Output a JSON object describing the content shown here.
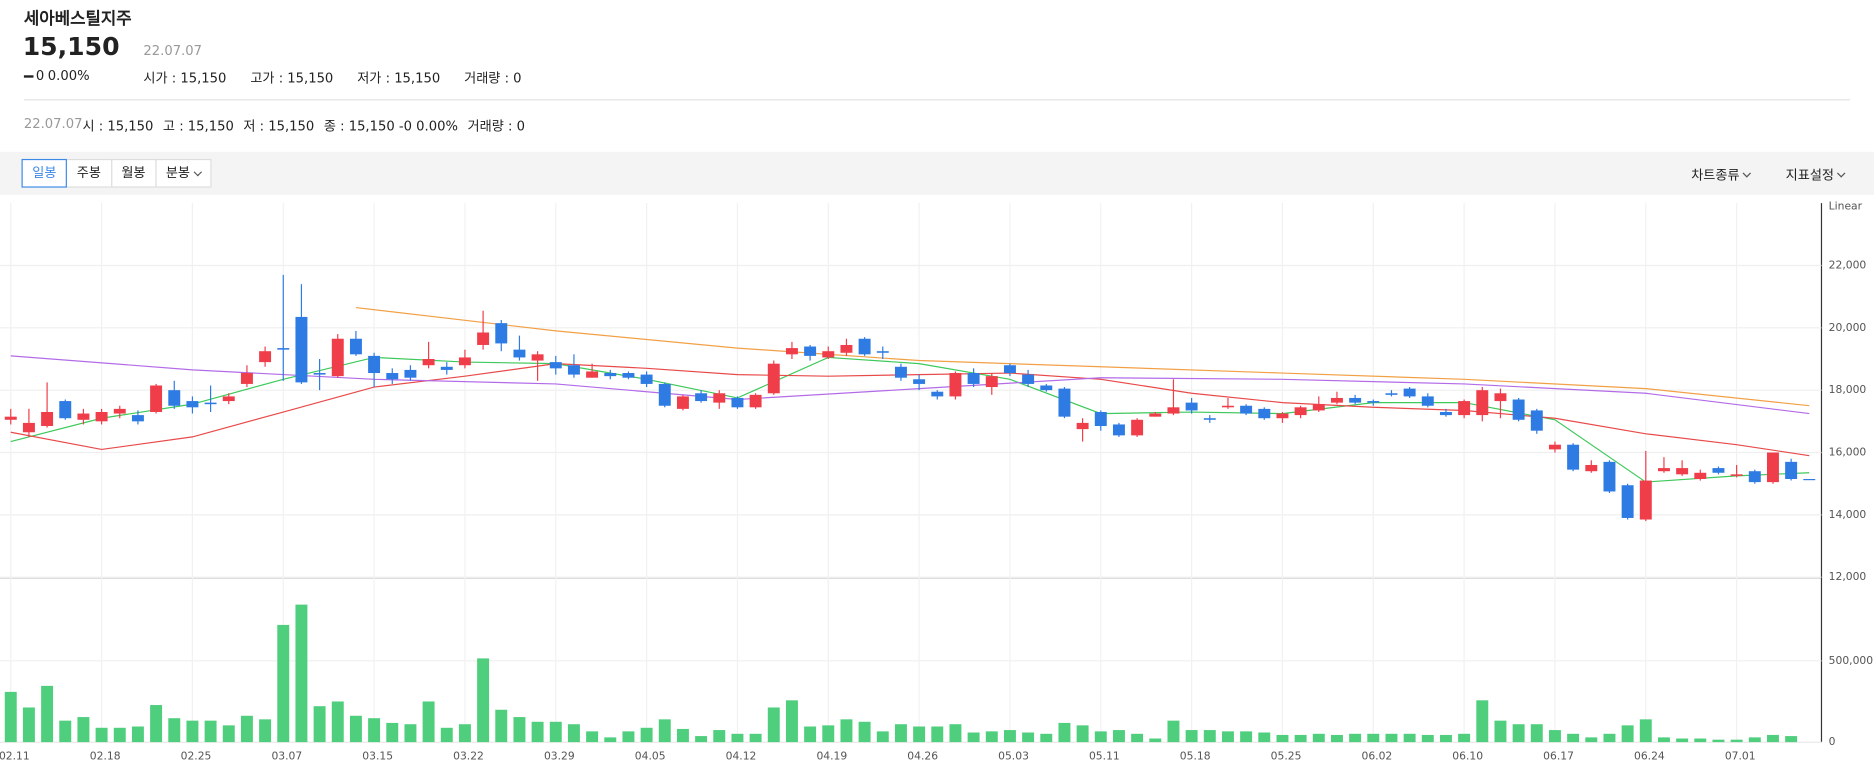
{
  "header": {
    "name": "세아베스틸지주",
    "price": "15,150",
    "date": "22.07.07",
    "change": "0",
    "change_pct": "0.00%",
    "stats": [
      "시가 : 15,150",
      "고가 : 15,150",
      "저가 : 15,150",
      "거래량 : 0"
    ]
  },
  "summary": {
    "date": "22.07.07",
    "items": [
      "시 : 15,150",
      "고 : 15,150",
      "저 : 15,150",
      "종 : 15,150 -0 0.00%",
      "거래량 : 0"
    ]
  },
  "toolbar": {
    "periods": [
      "일봉",
      "주봉",
      "월봉",
      "분봉"
    ],
    "selected": 0,
    "menus": [
      "차트종류",
      "지표설정"
    ]
  },
  "chart_data": {
    "type": "candlestick",
    "scale_label": "Linear",
    "categories": [
      "02.11",
      null,
      null,
      null,
      null,
      "02.18",
      null,
      null,
      null,
      null,
      "02.25",
      null,
      null,
      null,
      null,
      "03.07",
      null,
      null,
      null,
      null,
      "03.15",
      null,
      null,
      null,
      null,
      "03.22",
      null,
      null,
      null,
      null,
      "03.29",
      null,
      null,
      null,
      null,
      "04.05",
      null,
      null,
      null,
      null,
      "04.12",
      null,
      null,
      null,
      null,
      "04.19",
      null,
      null,
      null,
      null,
      "04.26",
      null,
      null,
      null,
      null,
      "05.03",
      null,
      null,
      null,
      null,
      "05.11",
      null,
      null,
      null,
      null,
      "05.18",
      null,
      null,
      null,
      null,
      "05.25",
      null,
      null,
      null,
      null,
      "06.02",
      null,
      null,
      null,
      null,
      "06.10",
      null,
      null,
      null,
      null,
      "06.17",
      null,
      null,
      null,
      null,
      "06.24",
      null,
      null,
      null,
      null,
      "07.01",
      null,
      null,
      null,
      null
    ],
    "open": [
      17050,
      16650,
      16850,
      17650,
      17050,
      17000,
      17250,
      17200,
      17300,
      18000,
      17650,
      17600,
      17650,
      18200,
      18900,
      19350,
      20350,
      18550,
      18450,
      19650,
      19100,
      18550,
      18650,
      18800,
      18750,
      18800,
      19450,
      20150,
      19300,
      18950,
      18900,
      18800,
      18400,
      18550,
      18550,
      18500,
      18200,
      17400,
      17900,
      17600,
      17750,
      17450,
      17900,
      19150,
      19400,
      19050,
      19200,
      19650,
      19250,
      18750,
      18350,
      17950,
      17800,
      18550,
      18100,
      18800,
      18500,
      18150,
      18050,
      16750,
      17300,
      16900,
      16550,
      17150,
      17250,
      17600,
      17100,
      17450,
      17500,
      17400,
      17100,
      17200,
      17350,
      17600,
      17750,
      17650,
      17900,
      18050,
      17800,
      17300,
      17200,
      17200,
      17650,
      17700,
      17350,
      16100,
      16250,
      15400,
      15700,
      14950,
      13850,
      15400,
      15300,
      15150,
      15500,
      15250,
      15400,
      15050,
      15700,
      15150
    ],
    "close": [
      17150,
      16950,
      17300,
      17100,
      17250,
      17300,
      17400,
      17000,
      18150,
      17500,
      17450,
      17550,
      17800,
      18550,
      19250,
      19300,
      18250,
      18500,
      19650,
      19150,
      18550,
      18350,
      18400,
      19000,
      18650,
      19050,
      19850,
      19500,
      19050,
      19150,
      18700,
      18500,
      18600,
      18450,
      18400,
      18200,
      17500,
      17800,
      17650,
      17900,
      17450,
      17850,
      18850,
      19350,
      19100,
      19250,
      19450,
      19150,
      19200,
      18400,
      18200,
      17800,
      18550,
      18200,
      18450,
      18550,
      18200,
      18000,
      17150,
      16950,
      16850,
      16550,
      17050,
      17250,
      17450,
      17350,
      17050,
      17500,
      17250,
      17100,
      17250,
      17450,
      17550,
      17750,
      17600,
      17600,
      17850,
      17800,
      17500,
      17200,
      17650,
      18000,
      17900,
      17050,
      16700,
      16250,
      15450,
      15600,
      14750,
      13900,
      15100,
      15500,
      15500,
      15350,
      15350,
      15300,
      15050,
      16000,
      15150,
      15150
    ],
    "high": [
      17400,
      17400,
      18250,
      17700,
      17400,
      17400,
      17500,
      17350,
      18200,
      18300,
      17800,
      18150,
      17900,
      18800,
      19400,
      21700,
      21400,
      19000,
      19800,
      19900,
      19200,
      18700,
      18800,
      19550,
      18900,
      19300,
      20550,
      20250,
      19750,
      19250,
      19100,
      19150,
      18850,
      18650,
      18600,
      18600,
      18250,
      17850,
      18000,
      18000,
      17800,
      17900,
      18950,
      19550,
      19450,
      19400,
      19650,
      19700,
      19400,
      18850,
      18500,
      18000,
      18600,
      18700,
      18550,
      18850,
      18650,
      18200,
      18100,
      17100,
      17350,
      16950,
      17100,
      17300,
      18350,
      17750,
      17200,
      17750,
      17550,
      17450,
      17300,
      17500,
      17800,
      17950,
      17850,
      17700,
      18000,
      18100,
      17900,
      17400,
      17700,
      18100,
      18050,
      17750,
      17400,
      16350,
      16300,
      15750,
      15750,
      15000,
      16050,
      15850,
      15750,
      15450,
      15550,
      15600,
      15450,
      16000,
      15800,
      15150
    ],
    "low": [
      16900,
      16500,
      16800,
      17050,
      16900,
      16900,
      17100,
      16900,
      17250,
      17400,
      17250,
      17300,
      17550,
      18100,
      18750,
      18300,
      18200,
      18000,
      18400,
      19100,
      18100,
      18200,
      18300,
      18700,
      18500,
      18700,
      19300,
      19250,
      18950,
      18300,
      18500,
      18400,
      18400,
      18350,
      18350,
      18100,
      17450,
      17350,
      17600,
      17400,
      17400,
      17400,
      17850,
      19000,
      18950,
      19000,
      19100,
      19100,
      19000,
      18300,
      18000,
      17700,
      17700,
      18100,
      17850,
      18450,
      18100,
      17950,
      17100,
      16350,
      16700,
      16500,
      16500,
      17150,
      17200,
      17250,
      16950,
      17400,
      17200,
      17050,
      16950,
      17100,
      17300,
      17550,
      17550,
      17500,
      17800,
      17750,
      17450,
      17150,
      17100,
      17000,
      17100,
      17000,
      16600,
      16000,
      15400,
      15350,
      14700,
      13850,
      13800,
      15350,
      15250,
      15100,
      15300,
      15200,
      15000,
      15000,
      15100,
      15150
    ],
    "volume": [
      309000,
      213000,
      346000,
      132000,
      154000,
      88000,
      88000,
      96000,
      228000,
      147000,
      132000,
      132000,
      103000,
      162000,
      140000,
      721000,
      846000,
      221000,
      250000,
      162000,
      147000,
      118000,
      110000,
      250000,
      88000,
      110000,
      515000,
      199000,
      154000,
      125000,
      125000,
      110000,
      66000,
      29000,
      66000,
      88000,
      140000,
      81000,
      37000,
      74000,
      51000,
      51000,
      213000,
      257000,
      96000,
      103000,
      140000,
      125000,
      66000,
      110000,
      96000,
      96000,
      110000,
      59000,
      66000,
      74000,
      59000,
      51000,
      118000,
      103000,
      66000,
      74000,
      51000,
      22000,
      132000,
      74000,
      74000,
      66000,
      66000,
      59000,
      44000,
      44000,
      51000,
      44000,
      51000,
      51000,
      51000,
      51000,
      44000,
      44000,
      51000,
      257000,
      132000,
      110000,
      110000,
      74000,
      51000,
      29000,
      51000,
      103000,
      140000,
      29000,
      22000,
      22000,
      15000,
      15000,
      29000,
      44000,
      37000,
      0
    ],
    "up_color": "#ef3e4a",
    "down_color": "#2e7be3",
    "volume_color": "#4fcf7d",
    "ylim": [
      12000,
      24000
    ],
    "yticks": [
      {
        "value": 12000,
        "label": "12,000"
      },
      {
        "value": 14000,
        "label": "14,000"
      },
      {
        "value": 16000,
        "label": "16,000"
      },
      {
        "value": 18000,
        "label": "18,000"
      },
      {
        "value": 20000,
        "label": "20,000"
      },
      {
        "value": 22000,
        "label": "22,000"
      }
    ],
    "volume_lim": [
      0,
      1000000
    ],
    "volume_ticks": [
      0,
      {
        "value": 500000,
        "label": "500,000"
      }
    ],
    "grid": true,
    "moving_averages": [
      {
        "color": "#3ec95a",
        "x": [
          0,
          5,
          10,
          15,
          20,
          25,
          30,
          35,
          40,
          45,
          50,
          55,
          60,
          65,
          70,
          75,
          80,
          85,
          90,
          95,
          99
        ],
        "values": [
          16350,
          17100,
          17550,
          18350,
          19050,
          18900,
          18850,
          18350,
          17750,
          19050,
          18850,
          18350,
          17250,
          17300,
          17250,
          17600,
          17600,
          17050,
          15050,
          15250,
          15350
        ]
      },
      {
        "color": "#e84a4a",
        "x": [
          0,
          5,
          10,
          15,
          20,
          25,
          30,
          35,
          40,
          45,
          50,
          55,
          60,
          65,
          70,
          75,
          80,
          85,
          90,
          95,
          99
        ],
        "values": [
          16650,
          16100,
          16500,
          17300,
          18100,
          18450,
          18850,
          18700,
          18500,
          18450,
          18500,
          18550,
          18350,
          17900,
          17600,
          17450,
          17350,
          17100,
          16600,
          16250,
          15900
        ]
      },
      {
        "color": "#b36be8",
        "x": [
          0,
          10,
          20,
          30,
          40,
          50,
          60,
          70,
          80,
          90,
          99
        ],
        "values": [
          19100,
          18650,
          18350,
          18200,
          17700,
          18050,
          18400,
          18350,
          18200,
          17900,
          17250
        ]
      },
      {
        "color": "#f2a046",
        "x": [
          19,
          30,
          40,
          50,
          60,
          70,
          80,
          90,
          99
        ],
        "values": [
          20650,
          19900,
          19350,
          18950,
          18750,
          18550,
          18350,
          18050,
          17500
        ]
      }
    ]
  }
}
